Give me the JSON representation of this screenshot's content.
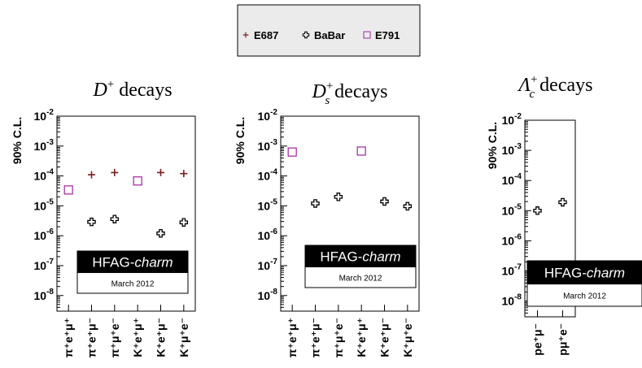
{
  "legend": {
    "entries": [
      {
        "name": "E687",
        "marker": "plus",
        "color": "#7a1f1f"
      },
      {
        "name": "BaBar",
        "marker": "cross-outline",
        "color": "#000000"
      },
      {
        "name": "E791",
        "marker": "square-outline",
        "color": "#a020a0"
      }
    ]
  },
  "watermark": {
    "brand": "HFAG-",
    "brand_italic": "charm",
    "date": "March 2012"
  },
  "chart_data": [
    {
      "type": "scatter",
      "title": {
        "base": "D",
        "sup": "+",
        "sub": "",
        "suffix": " decays"
      },
      "ylabel": "90% C.L.",
      "yscale": "log",
      "ylim": [
        3e-09,
        0.01
      ],
      "yticks": [
        {
          "b": "10",
          "e": "-2"
        },
        {
          "b": "10",
          "e": "-3"
        },
        {
          "b": "10",
          "e": "-4"
        },
        {
          "b": "10",
          "e": "-5"
        },
        {
          "b": "10",
          "e": "-6"
        },
        {
          "b": "10",
          "e": "-7"
        },
        {
          "b": "10",
          "e": "-8"
        }
      ],
      "categories": [
        "π⁺e⁺μ⁺",
        "π⁺e⁺μ⁻",
        "π⁺μ⁺e⁻",
        "K⁺e⁺μ⁺",
        "K⁺e⁺μ⁻",
        "K⁺μ⁺e⁻"
      ],
      "series": [
        {
          "name": "E687",
          "values": [
            null,
            0.00011,
            0.00013,
            null,
            0.00013,
            0.00012
          ]
        },
        {
          "name": "BaBar",
          "values": [
            null,
            2.9e-06,
            3.6e-06,
            null,
            1.2e-06,
            2.8e-06
          ]
        },
        {
          "name": "E791",
          "values": [
            3.4e-05,
            null,
            null,
            6.8e-05,
            null,
            null
          ]
        }
      ]
    },
    {
      "type": "scatter",
      "title": {
        "base": "D",
        "sup": "+",
        "sub": "s",
        "suffix": " decays"
      },
      "ylabel": "90% C.L.",
      "yscale": "log",
      "ylim": [
        3e-09,
        0.01
      ],
      "yticks": [
        {
          "b": "10",
          "e": "-2"
        },
        {
          "b": "10",
          "e": "-3"
        },
        {
          "b": "10",
          "e": "-4"
        },
        {
          "b": "10",
          "e": "-5"
        },
        {
          "b": "10",
          "e": "-6"
        },
        {
          "b": "10",
          "e": "-7"
        },
        {
          "b": "10",
          "e": "-8"
        }
      ],
      "categories": [
        "π⁺e⁺μ⁺",
        "π⁺e⁺μ⁻",
        "π⁺μ⁺e⁻",
        "K⁺e⁺μ⁺",
        "K⁺e⁺μ⁻",
        "K⁺μ⁺e⁻"
      ],
      "series": [
        {
          "name": "E687",
          "values": [
            null,
            null,
            null,
            null,
            null,
            null
          ]
        },
        {
          "name": "BaBar",
          "values": [
            null,
            1.2e-05,
            2e-05,
            null,
            1.4e-05,
            9.7e-06
          ]
        },
        {
          "name": "E791",
          "values": [
            0.00063,
            null,
            null,
            0.00068,
            null,
            null
          ]
        }
      ]
    },
    {
      "type": "scatter",
      "title": {
        "base": "Λ",
        "sup": "+",
        "sub": "c",
        "suffix": " decays"
      },
      "ylabel": "90% C.L.",
      "yscale": "log",
      "ylim": [
        3e-09,
        0.01
      ],
      "yticks": [
        {
          "b": "10",
          "e": "-2"
        },
        {
          "b": "10",
          "e": "-3"
        },
        {
          "b": "10",
          "e": "-4"
        },
        {
          "b": "10",
          "e": "-5"
        },
        {
          "b": "10",
          "e": "-6"
        },
        {
          "b": "10",
          "e": "-7"
        },
        {
          "b": "10",
          "e": "-8"
        }
      ],
      "categories": [
        "pe⁺μ⁻",
        "pμ⁺e⁻"
      ],
      "series": [
        {
          "name": "E687",
          "values": [
            null,
            null
          ]
        },
        {
          "name": "BaBar",
          "values": [
            1e-05,
            1.9e-05
          ]
        },
        {
          "name": "E791",
          "values": [
            null,
            null
          ]
        }
      ]
    }
  ]
}
